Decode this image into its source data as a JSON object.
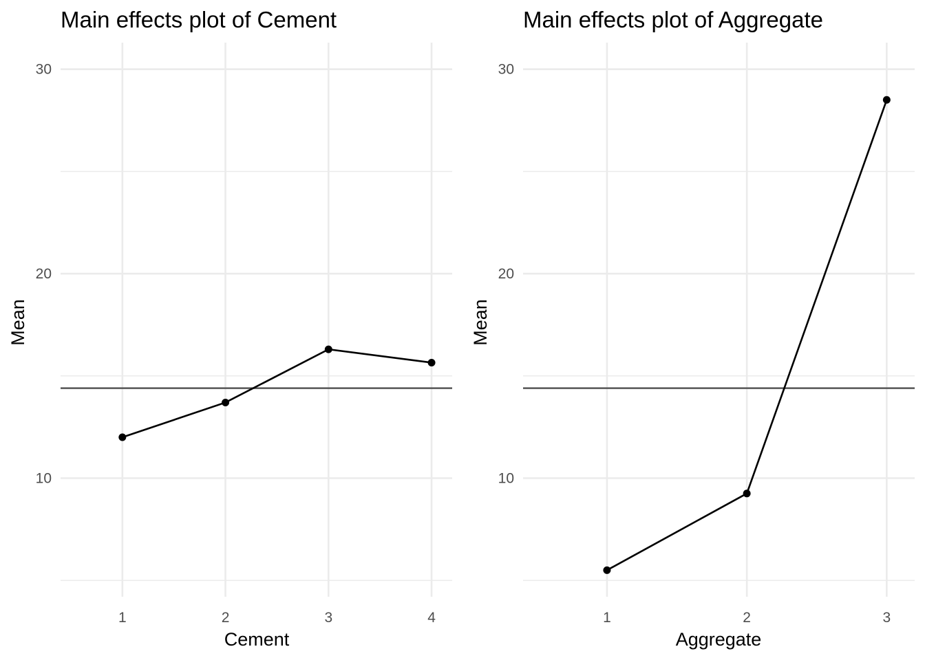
{
  "chart_data": [
    {
      "type": "line",
      "title": "Main effects plot of Cement",
      "xlabel": "Cement",
      "ylabel": "Mean",
      "categories": [
        "1",
        "2",
        "3",
        "4"
      ],
      "values": [
        12.0,
        13.7,
        16.3,
        15.65
      ],
      "reference_line": 14.4,
      "ylim": [
        4.2,
        31.3
      ],
      "yticks": [
        10,
        20,
        30
      ],
      "grid": true
    },
    {
      "type": "line",
      "title": "Main effects plot of Aggregate",
      "xlabel": "Aggregate",
      "ylabel": "Mean",
      "categories": [
        "1",
        "2",
        "3"
      ],
      "values": [
        5.5,
        9.25,
        28.5
      ],
      "reference_line": 14.4,
      "ylim": [
        4.2,
        31.3
      ],
      "yticks": [
        10,
        20,
        30
      ],
      "grid": true
    }
  ]
}
